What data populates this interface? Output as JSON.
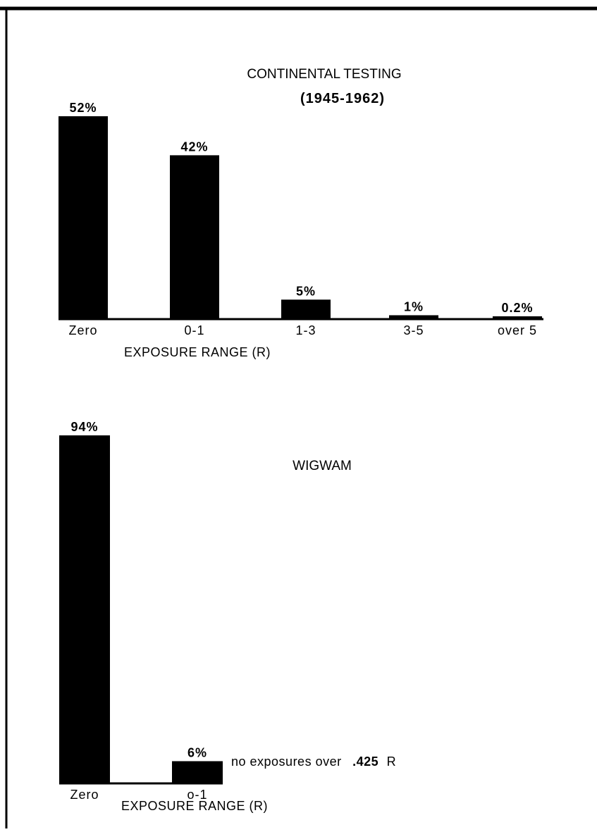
{
  "chart_data": [
    {
      "type": "bar",
      "title": "CONTINENTAL TESTING",
      "subtitle": "(1945-1962)",
      "categories": [
        "Zero",
        "0-1",
        "1-3",
        "3-5",
        "over 5"
      ],
      "values": [
        52,
        42,
        5,
        1,
        0.2
      ],
      "value_labels": [
        "52%",
        "42%",
        "5%",
        "1%",
        "0.2%"
      ],
      "xlabel": "EXPOSURE RANGE (R)",
      "ylabel": "",
      "ylim": [
        0,
        52
      ],
      "grid": false,
      "bar_color": "#000000"
    },
    {
      "type": "bar",
      "title": "WIGWAM",
      "categories": [
        "Zero",
        "o-1"
      ],
      "values": [
        94,
        6
      ],
      "value_labels": [
        "94%",
        "6%"
      ],
      "xlabel": "EXPOSURE RANGE (R)",
      "ylabel": "",
      "ylim": [
        0,
        94
      ],
      "grid": false,
      "bar_color": "#000000",
      "annotation": {
        "prefix": "no exposures over",
        "value": ".425",
        "suffix": "R"
      }
    }
  ]
}
